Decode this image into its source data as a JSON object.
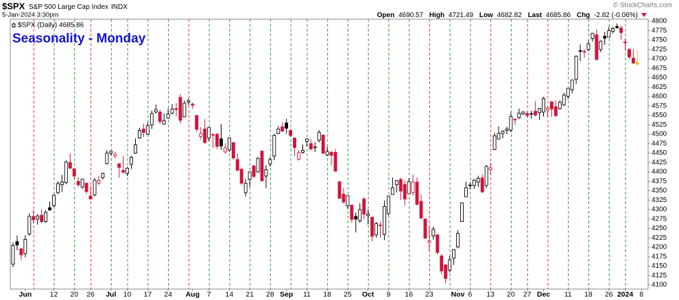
{
  "chart_data": {
    "type": "candlestick",
    "symbol": "$SPX",
    "name": "S&P 500 Large Cap Index",
    "exchange": "INDX",
    "date": "5-Jan-2024 3:30pm",
    "watermark": "© StockCharts.com",
    "quote_labels": [
      "Open",
      "High",
      "Low",
      "Last",
      "Chg"
    ],
    "change_label": "-2.82 (-0.06%)",
    "legend": "$SPX (Daily) 4685.86",
    "title": "Seasonality - Monday",
    "title_color": "#1414d2",
    "up_fill": "#ffffff",
    "up_color": "#000000",
    "down_color": "#d0143c",
    "highlight_last": "#f0c020",
    "grid": false,
    "ylim": [
      4090,
      4810
    ],
    "yticks": [
      4100,
      4125,
      4150,
      4175,
      4200,
      4225,
      4250,
      4275,
      4300,
      4325,
      4350,
      4375,
      4400,
      4425,
      4450,
      4475,
      4500,
      4525,
      4550,
      4575,
      4600,
      4625,
      4650,
      4675,
      4700,
      4725,
      4750,
      4775,
      4800
    ],
    "categories": [
      null,
      null,
      null,
      "Jun",
      null,
      null,
      null,
      null,
      null,
      null,
      "12",
      null,
      null,
      null,
      null,
      "20",
      null,
      null,
      null,
      "26",
      null,
      null,
      null,
      null,
      "Jul",
      null,
      null,
      null,
      "10",
      null,
      null,
      null,
      null,
      "17",
      null,
      null,
      null,
      null,
      "24",
      null,
      null,
      null,
      null,
      null,
      "Aug",
      null,
      null,
      null,
      "7",
      null,
      null,
      null,
      null,
      "14",
      null,
      null,
      null,
      null,
      "21",
      null,
      null,
      null,
      null,
      "28",
      null,
      null,
      null,
      "Sep",
      null,
      null,
      null,
      null,
      "11",
      null,
      null,
      null,
      null,
      "18",
      null,
      null,
      null,
      null,
      "25",
      null,
      null,
      null,
      null,
      "Oct",
      null,
      null,
      null,
      null,
      "9",
      null,
      null,
      null,
      null,
      "16",
      null,
      null,
      null,
      null,
      "23",
      null,
      null,
      null,
      null,
      null,
      null,
      "Nov",
      null,
      null,
      "6",
      null,
      null,
      null,
      null,
      "13",
      null,
      null,
      null,
      null,
      "20",
      null,
      null,
      null,
      "27",
      null,
      null,
      null,
      "Dec",
      null,
      null,
      null,
      null,
      null,
      "11",
      null,
      null,
      null,
      null,
      "18",
      null,
      null,
      null,
      null,
      "26",
      null,
      null,
      null,
      "2024",
      null,
      null,
      null,
      "8"
    ],
    "vline_colors": [
      null,
      null,
      null,
      null,
      null,
      "#e8342c",
      null,
      null,
      null,
      null,
      "#2e9a2e",
      null,
      null,
      null,
      null,
      "#2e9a2e",
      null,
      null,
      null,
      "#e8342c",
      null,
      null,
      null,
      null,
      "#2e9a2e",
      null,
      null,
      null,
      "#2e9a2e",
      null,
      null,
      null,
      null,
      "#2e9a2e",
      null,
      null,
      null,
      null,
      "#2e9a2e",
      null,
      null,
      null,
      null,
      "#e8342c",
      null,
      null,
      null,
      null,
      "#2e9a2e",
      null,
      null,
      null,
      null,
      "#2e9a2e",
      null,
      null,
      null,
      null,
      "#2e9a2e",
      null,
      null,
      null,
      null,
      "#2e9a2e",
      null,
      null,
      null,
      null,
      "#2e9a2e",
      null,
      null,
      null,
      "#2e9a2e",
      null,
      null,
      null,
      null,
      "#2e9a2e",
      null,
      null,
      null,
      null,
      "#2e9a2e",
      null,
      null,
      null,
      null,
      "#2e9a2e",
      null,
      null,
      null,
      null,
      "#2e9a2e",
      null,
      null,
      null,
      null,
      "#2e9a2e",
      null,
      null,
      null,
      null,
      "#e8342c",
      null,
      null,
      null,
      null,
      "#2e9a2e",
      null,
      null,
      null,
      null,
      "#2e9a2e",
      null,
      null,
      null,
      null,
      "#e8342c",
      null,
      null,
      null,
      null,
      "#2e9a2e",
      null,
      null,
      null,
      "#e8342c",
      null,
      null,
      null,
      null,
      "#e8342c",
      null,
      null,
      null,
      null,
      "#2e9a2e",
      null,
      null,
      null,
      null,
      "#2e9a2e",
      null,
      null,
      null,
      null,
      "#2e9a2e",
      null,
      null,
      null,
      "#2e9a2e",
      null,
      null,
      null,
      null
    ],
    "series": [
      {
        "open": [
          4155,
          4215,
          4196,
          4183,
          4235,
          4282,
          4275,
          4285,
          4268,
          4305,
          4310,
          4345,
          4366,
          4372,
          4425,
          4408,
          4375,
          4360,
          4370,
          4336,
          4339,
          4370,
          4385,
          4422,
          4450,
          4442,
          4422,
          4404,
          4396,
          4420,
          4450,
          4490,
          4514,
          4500,
          4525,
          4559,
          4559,
          4527,
          4543,
          4556,
          4568,
          4598,
          4546,
          4585,
          4580,
          4550,
          4494,
          4514,
          4490,
          4498,
          4500,
          4488,
          4453,
          4458,
          4478,
          4433,
          4407,
          4345,
          4380,
          4416,
          4400,
          4455,
          4389,
          4421,
          4442,
          4502,
          4520,
          4530,
          4510,
          4490,
          4434,
          4452,
          4481,
          4475,
          4464,
          4484,
          4498,
          4445,
          4452,
          4452,
          4374,
          4341,
          4310,
          4312,
          4282,
          4270,
          4328,
          4284,
          4280,
          4233,
          4259,
          4234,
          4289,
          4340,
          4366,
          4380,
          4367,
          4342,
          4345,
          4373,
          4322,
          4275,
          4213,
          4230,
          4233,
          4177,
          4153,
          4139,
          4171,
          4201,
          4268,
          4334,
          4364,
          4364,
          4373,
          4384,
          4364,
          4406,
          4459,
          4487,
          4502,
          4510,
          4511,
          4540,
          4544,
          4554,
          4555,
          4553,
          4561,
          4557,
          4559,
          4564,
          4586,
          4573,
          4568,
          4578,
          4601,
          4618,
          4646,
          4722,
          4720,
          4725,
          4754,
          4764,
          4725,
          4760,
          4758,
          4773,
          4786,
          4782,
          4745,
          4725,
          4702,
          4690.57,
          null
        ],
        "high": [
          4213,
          4231,
          4198,
          4232,
          4290,
          4299,
          4288,
          4300,
          4298,
          4322,
          4340,
          4375,
          4392,
          4431,
          4449,
          4409,
          4386,
          4382,
          4372,
          4362,
          4384,
          4390,
          4398,
          4458,
          4456,
          4454,
          4422,
          4442,
          4413,
          4443,
          4489,
          4517,
          4528,
          4532,
          4563,
          4579,
          4565,
          4555,
          4568,
          4580,
          4583,
          4607,
          4590,
          4595,
          4584,
          4550,
          4519,
          4540,
          4519,
          4503,
          4503,
          4527,
          4476,
          4490,
          4478,
          4449,
          4412,
          4381,
          4401,
          4419,
          4439,
          4458,
          4418,
          4440,
          4501,
          4521,
          4532,
          4541,
          4514,
          4490,
          4458,
          4473,
          4490,
          4487,
          4479,
          4511,
          4498,
          4467,
          4456,
          4461,
          4375,
          4357,
          4338,
          4313,
          4292,
          4317,
          4333,
          4300,
          4281,
          4267,
          4268,
          4324,
          4337,
          4385,
          4378,
          4385,
          4377,
          4383,
          4393,
          4385,
          4340,
          4276,
          4255,
          4255,
          4233,
          4182,
          4156,
          4177,
          4195,
          4245,
          4319,
          4374,
          4372,
          4381,
          4390,
          4393,
          4418,
          4423,
          4504,
          4521,
          4511,
          4520,
          4557,
          4542,
          4568,
          4561,
          4561,
          4562,
          4588,
          4570,
          4599,
          4574,
          4588,
          4590,
          4590,
          4610,
          4623,
          4644,
          4709,
          4738,
          4726,
          4749,
          4769,
          4779,
          4749,
          4772,
          4785,
          4785,
          4794,
          4788,
          4755,
          4729,
          4726,
          4721.49,
          null
        ],
        "low": [
          4147,
          4192,
          4166,
          4173,
          4230,
          4263,
          4260,
          4264,
          4265,
          4297,
          4307,
          4341,
          4347,
          4367,
          4407,
          4381,
          4360,
          4355,
          4341,
          4327,
          4335,
          4365,
          4380,
          4420,
          4443,
          4436,
          4385,
          4397,
          4389,
          4408,
          4448,
          4488,
          4493,
          4498,
          4514,
          4555,
          4527,
          4526,
          4541,
          4553,
          4547,
          4528,
          4545,
          4577,
          4567,
          4506,
          4486,
          4474,
          4481,
          4464,
          4461,
          4458,
          4448,
          4453,
          4432,
          4403,
          4365,
          4335,
          4360,
          4384,
          4398,
          4376,
          4357,
          4414,
          4431,
          4500,
          4507,
          4501,
          4493,
          4442,
          4430,
          4448,
          4467,
          4457,
          4453,
          4478,
          4447,
          4442,
          4417,
          4401,
          4329,
          4316,
          4302,
          4265,
          4239,
          4265,
          4274,
          4260,
          4216,
          4226,
          4226,
          4219,
          4284,
          4339,
          4345,
          4325,
          4311,
          4341,
          4337,
          4311,
          4274,
          4223,
          4190,
          4220,
          4181,
          4128,
          4104,
          4133,
          4153,
          4197,
          4268,
          4334,
          4354,
          4355,
          4360,
          4344,
          4357,
          4393,
          4459,
          4487,
          4489,
          4500,
          4506,
          4525,
          4540,
          4551,
          4544,
          4541,
          4547,
          4538,
          4547,
          4547,
          4546,
          4547,
          4565,
          4575,
          4593,
          4608,
          4634,
          4694,
          4703,
          4720,
          4746,
          4698,
          4718,
          4737,
          4758,
          4768,
          4780,
          4751,
          4723,
          4700,
          4687,
          4682.82,
          null
        ],
        "close": [
          4205,
          4206,
          4180,
          4221,
          4282,
          4273,
          4283,
          4268,
          4293,
          4299,
          4338,
          4369,
          4373,
          4426,
          4410,
          4389,
          4366,
          4381,
          4348,
          4328,
          4378,
          4377,
          4396,
          4450,
          4455,
          4447,
          4412,
          4399,
          4410,
          4439,
          4472,
          4510,
          4505,
          4523,
          4555,
          4565,
          4534,
          4536,
          4554,
          4567,
          4566,
          4537,
          4582,
          4589,
          4577,
          4513,
          4502,
          4478,
          4518,
          4499,
          4468,
          4469,
          4464,
          4490,
          4437,
          4404,
          4370,
          4370,
          4400,
          4388,
          4436,
          4376,
          4406,
          4433,
          4497,
          4514,
          4508,
          4516,
          4497,
          4465,
          4451,
          4457,
          4487,
          4461,
          4467,
          4505,
          4450,
          4454,
          4444,
          4402,
          4330,
          4320,
          4337,
          4274,
          4275,
          4300,
          4288,
          4288,
          4229,
          4263,
          4258,
          4308,
          4336,
          4358,
          4377,
          4349,
          4328,
          4374,
          4373,
          4314,
          4278,
          4224,
          4217,
          4248,
          4186,
          4137,
          4117,
          4167,
          4194,
          4237,
          4318,
          4358,
          4365,
          4378,
          4383,
          4347,
          4415,
          4411,
          4496,
          4502,
          4508,
          4514,
          4547,
          4538,
          4556,
          4559,
          4550,
          4555,
          4551,
          4568,
          4595,
          4569,
          4567,
          4549,
          4585,
          4604,
          4622,
          4644,
          4707,
          4720,
          4719,
          4740,
          4768,
          4698,
          4747,
          4755,
          4775,
          4781,
          4783,
          4770,
          4743,
          4705,
          4689,
          4685.86,
          null
        ]
      }
    ]
  }
}
